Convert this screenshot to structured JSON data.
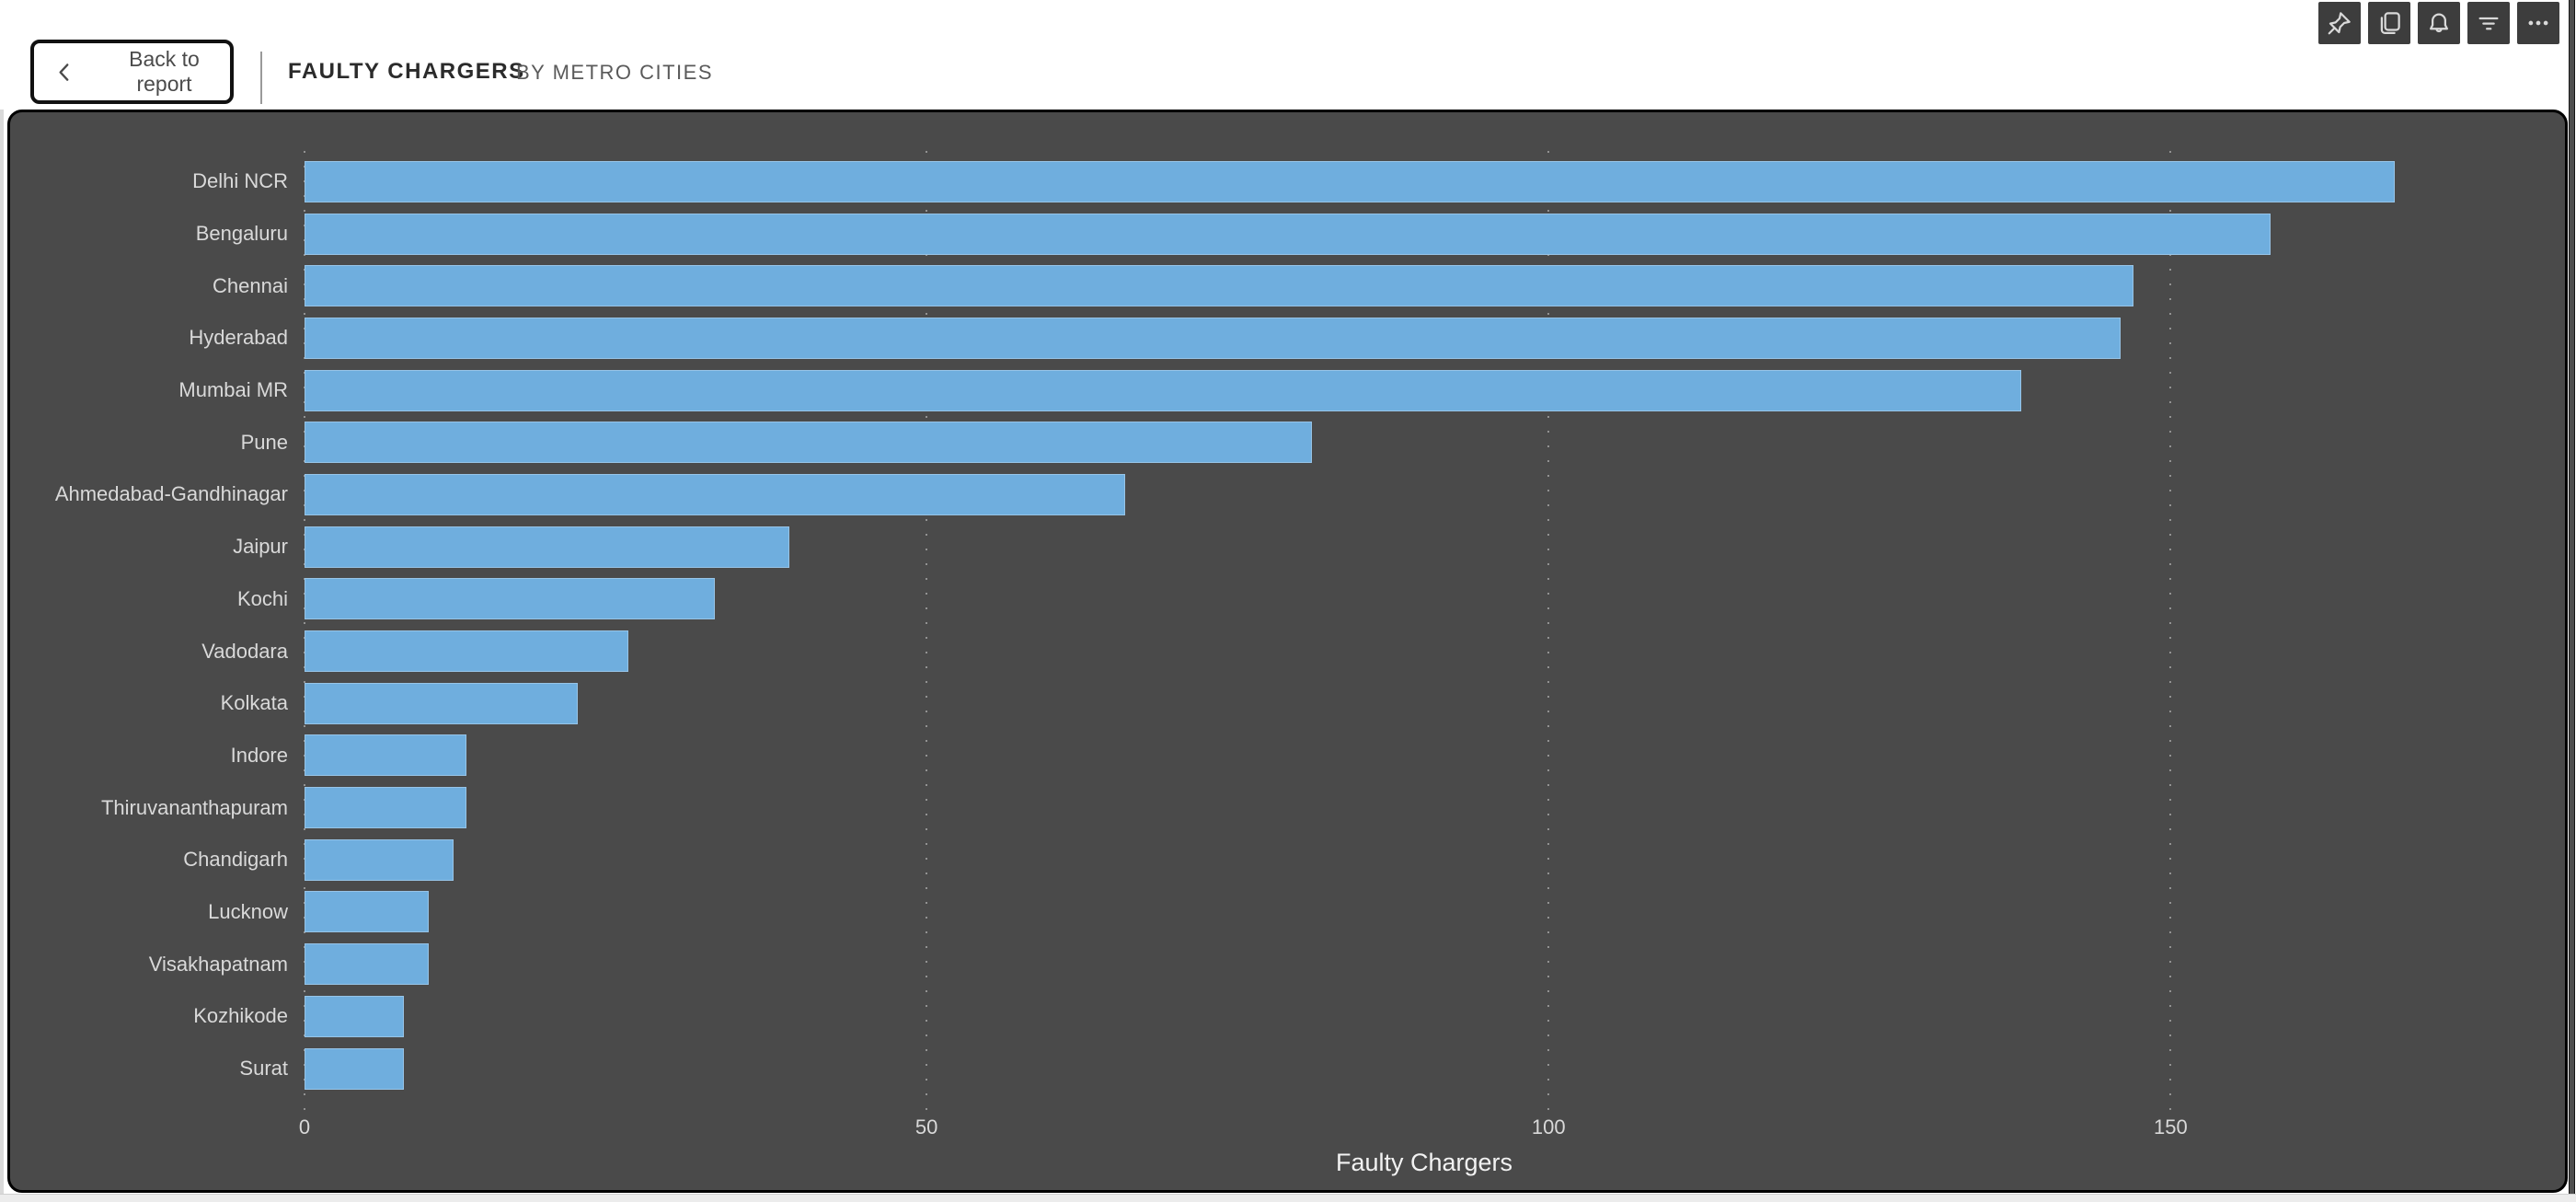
{
  "header": {
    "back_label": "Back to report",
    "title": "FAULTY CHARGERS",
    "subtitle": "BY METRO CITIES",
    "toolbar_icons": [
      "pin-icon",
      "copy-icon",
      "bell-icon",
      "filter-icon",
      "ellipsis-icon"
    ]
  },
  "chart_data": {
    "type": "bar",
    "orientation": "horizontal",
    "title": "FAULTY CHARGERS",
    "subtitle": "BY METRO CITIES",
    "categories": [
      "Delhi NCR",
      "Bengaluru",
      "Chennai",
      "Hyderabad",
      "Mumbai MR",
      "Pune",
      "Ahmedabad-Gandhinagar",
      "Jaipur",
      "Kochi",
      "Vadodara",
      "Kolkata",
      "Indore",
      "Thiruvananthapuram",
      "Chandigarh",
      "Lucknow",
      "Visakhapatnam",
      "Kozhikode",
      "Surat"
    ],
    "values": [
      168,
      158,
      147,
      146,
      138,
      81,
      66,
      39,
      33,
      26,
      22,
      13,
      13,
      12,
      10,
      10,
      8,
      8
    ],
    "xlabel": "Faulty Chargers",
    "x_ticks": [
      0,
      50,
      100,
      150
    ],
    "xlim": [
      0,
      180
    ],
    "grid": "dotted-vertical",
    "legend": "none",
    "bar_color": "#6FAEDE",
    "plot_background": "#4A4A4A",
    "label_color": "#D9D9D9"
  },
  "colors": {
    "panel_bg": "#4A4A4A",
    "header_bg": "#FFFFFF",
    "icon_button_bg": "#3D3D3D",
    "accent_blue": "#6FAEDE"
  }
}
